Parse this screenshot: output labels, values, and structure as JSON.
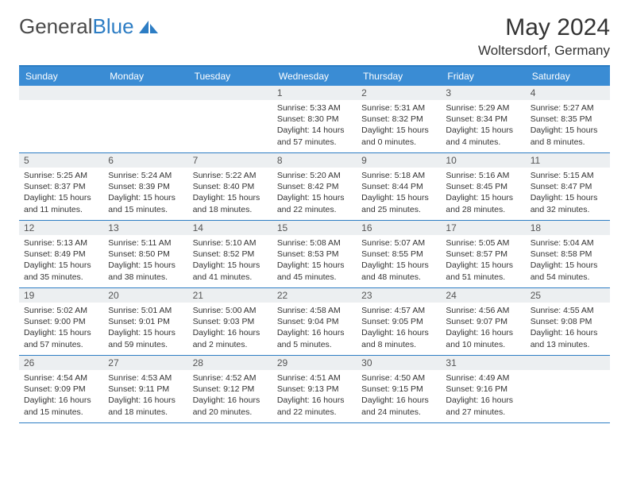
{
  "logo": {
    "text1": "General",
    "text2": "Blue"
  },
  "header": {
    "month": "May 2024",
    "location": "Woltersdorf, Germany"
  },
  "weekdays": [
    "Sunday",
    "Monday",
    "Tuesday",
    "Wednesday",
    "Thursday",
    "Friday",
    "Saturday"
  ],
  "style": {
    "accent": "#3a8cd4",
    "border": "#2d7dc4",
    "daynum_bg": "#eceff1",
    "text": "#333333",
    "body_bg": "#ffffff",
    "weekday_fontsize": 12,
    "daynum_fontsize": 12,
    "detail_fontsize": 10.5,
    "title_fontsize": 30,
    "location_fontsize": 17
  },
  "weeks": [
    [
      {
        "day": "",
        "sunrise": "",
        "sunset": "",
        "daylight1": "",
        "daylight2": ""
      },
      {
        "day": "",
        "sunrise": "",
        "sunset": "",
        "daylight1": "",
        "daylight2": ""
      },
      {
        "day": "",
        "sunrise": "",
        "sunset": "",
        "daylight1": "",
        "daylight2": ""
      },
      {
        "day": "1",
        "sunrise": "Sunrise: 5:33 AM",
        "sunset": "Sunset: 8:30 PM",
        "daylight1": "Daylight: 14 hours",
        "daylight2": "and 57 minutes."
      },
      {
        "day": "2",
        "sunrise": "Sunrise: 5:31 AM",
        "sunset": "Sunset: 8:32 PM",
        "daylight1": "Daylight: 15 hours",
        "daylight2": "and 0 minutes."
      },
      {
        "day": "3",
        "sunrise": "Sunrise: 5:29 AM",
        "sunset": "Sunset: 8:34 PM",
        "daylight1": "Daylight: 15 hours",
        "daylight2": "and 4 minutes."
      },
      {
        "day": "4",
        "sunrise": "Sunrise: 5:27 AM",
        "sunset": "Sunset: 8:35 PM",
        "daylight1": "Daylight: 15 hours",
        "daylight2": "and 8 minutes."
      }
    ],
    [
      {
        "day": "5",
        "sunrise": "Sunrise: 5:25 AM",
        "sunset": "Sunset: 8:37 PM",
        "daylight1": "Daylight: 15 hours",
        "daylight2": "and 11 minutes."
      },
      {
        "day": "6",
        "sunrise": "Sunrise: 5:24 AM",
        "sunset": "Sunset: 8:39 PM",
        "daylight1": "Daylight: 15 hours",
        "daylight2": "and 15 minutes."
      },
      {
        "day": "7",
        "sunrise": "Sunrise: 5:22 AM",
        "sunset": "Sunset: 8:40 PM",
        "daylight1": "Daylight: 15 hours",
        "daylight2": "and 18 minutes."
      },
      {
        "day": "8",
        "sunrise": "Sunrise: 5:20 AM",
        "sunset": "Sunset: 8:42 PM",
        "daylight1": "Daylight: 15 hours",
        "daylight2": "and 22 minutes."
      },
      {
        "day": "9",
        "sunrise": "Sunrise: 5:18 AM",
        "sunset": "Sunset: 8:44 PM",
        "daylight1": "Daylight: 15 hours",
        "daylight2": "and 25 minutes."
      },
      {
        "day": "10",
        "sunrise": "Sunrise: 5:16 AM",
        "sunset": "Sunset: 8:45 PM",
        "daylight1": "Daylight: 15 hours",
        "daylight2": "and 28 minutes."
      },
      {
        "day": "11",
        "sunrise": "Sunrise: 5:15 AM",
        "sunset": "Sunset: 8:47 PM",
        "daylight1": "Daylight: 15 hours",
        "daylight2": "and 32 minutes."
      }
    ],
    [
      {
        "day": "12",
        "sunrise": "Sunrise: 5:13 AM",
        "sunset": "Sunset: 8:49 PM",
        "daylight1": "Daylight: 15 hours",
        "daylight2": "and 35 minutes."
      },
      {
        "day": "13",
        "sunrise": "Sunrise: 5:11 AM",
        "sunset": "Sunset: 8:50 PM",
        "daylight1": "Daylight: 15 hours",
        "daylight2": "and 38 minutes."
      },
      {
        "day": "14",
        "sunrise": "Sunrise: 5:10 AM",
        "sunset": "Sunset: 8:52 PM",
        "daylight1": "Daylight: 15 hours",
        "daylight2": "and 41 minutes."
      },
      {
        "day": "15",
        "sunrise": "Sunrise: 5:08 AM",
        "sunset": "Sunset: 8:53 PM",
        "daylight1": "Daylight: 15 hours",
        "daylight2": "and 45 minutes."
      },
      {
        "day": "16",
        "sunrise": "Sunrise: 5:07 AM",
        "sunset": "Sunset: 8:55 PM",
        "daylight1": "Daylight: 15 hours",
        "daylight2": "and 48 minutes."
      },
      {
        "day": "17",
        "sunrise": "Sunrise: 5:05 AM",
        "sunset": "Sunset: 8:57 PM",
        "daylight1": "Daylight: 15 hours",
        "daylight2": "and 51 minutes."
      },
      {
        "day": "18",
        "sunrise": "Sunrise: 5:04 AM",
        "sunset": "Sunset: 8:58 PM",
        "daylight1": "Daylight: 15 hours",
        "daylight2": "and 54 minutes."
      }
    ],
    [
      {
        "day": "19",
        "sunrise": "Sunrise: 5:02 AM",
        "sunset": "Sunset: 9:00 PM",
        "daylight1": "Daylight: 15 hours",
        "daylight2": "and 57 minutes."
      },
      {
        "day": "20",
        "sunrise": "Sunrise: 5:01 AM",
        "sunset": "Sunset: 9:01 PM",
        "daylight1": "Daylight: 15 hours",
        "daylight2": "and 59 minutes."
      },
      {
        "day": "21",
        "sunrise": "Sunrise: 5:00 AM",
        "sunset": "Sunset: 9:03 PM",
        "daylight1": "Daylight: 16 hours",
        "daylight2": "and 2 minutes."
      },
      {
        "day": "22",
        "sunrise": "Sunrise: 4:58 AM",
        "sunset": "Sunset: 9:04 PM",
        "daylight1": "Daylight: 16 hours",
        "daylight2": "and 5 minutes."
      },
      {
        "day": "23",
        "sunrise": "Sunrise: 4:57 AM",
        "sunset": "Sunset: 9:05 PM",
        "daylight1": "Daylight: 16 hours",
        "daylight2": "and 8 minutes."
      },
      {
        "day": "24",
        "sunrise": "Sunrise: 4:56 AM",
        "sunset": "Sunset: 9:07 PM",
        "daylight1": "Daylight: 16 hours",
        "daylight2": "and 10 minutes."
      },
      {
        "day": "25",
        "sunrise": "Sunrise: 4:55 AM",
        "sunset": "Sunset: 9:08 PM",
        "daylight1": "Daylight: 16 hours",
        "daylight2": "and 13 minutes."
      }
    ],
    [
      {
        "day": "26",
        "sunrise": "Sunrise: 4:54 AM",
        "sunset": "Sunset: 9:09 PM",
        "daylight1": "Daylight: 16 hours",
        "daylight2": "and 15 minutes."
      },
      {
        "day": "27",
        "sunrise": "Sunrise: 4:53 AM",
        "sunset": "Sunset: 9:11 PM",
        "daylight1": "Daylight: 16 hours",
        "daylight2": "and 18 minutes."
      },
      {
        "day": "28",
        "sunrise": "Sunrise: 4:52 AM",
        "sunset": "Sunset: 9:12 PM",
        "daylight1": "Daylight: 16 hours",
        "daylight2": "and 20 minutes."
      },
      {
        "day": "29",
        "sunrise": "Sunrise: 4:51 AM",
        "sunset": "Sunset: 9:13 PM",
        "daylight1": "Daylight: 16 hours",
        "daylight2": "and 22 minutes."
      },
      {
        "day": "30",
        "sunrise": "Sunrise: 4:50 AM",
        "sunset": "Sunset: 9:15 PM",
        "daylight1": "Daylight: 16 hours",
        "daylight2": "and 24 minutes."
      },
      {
        "day": "31",
        "sunrise": "Sunrise: 4:49 AM",
        "sunset": "Sunset: 9:16 PM",
        "daylight1": "Daylight: 16 hours",
        "daylight2": "and 27 minutes."
      },
      {
        "day": "",
        "sunrise": "",
        "sunset": "",
        "daylight1": "",
        "daylight2": ""
      }
    ]
  ]
}
